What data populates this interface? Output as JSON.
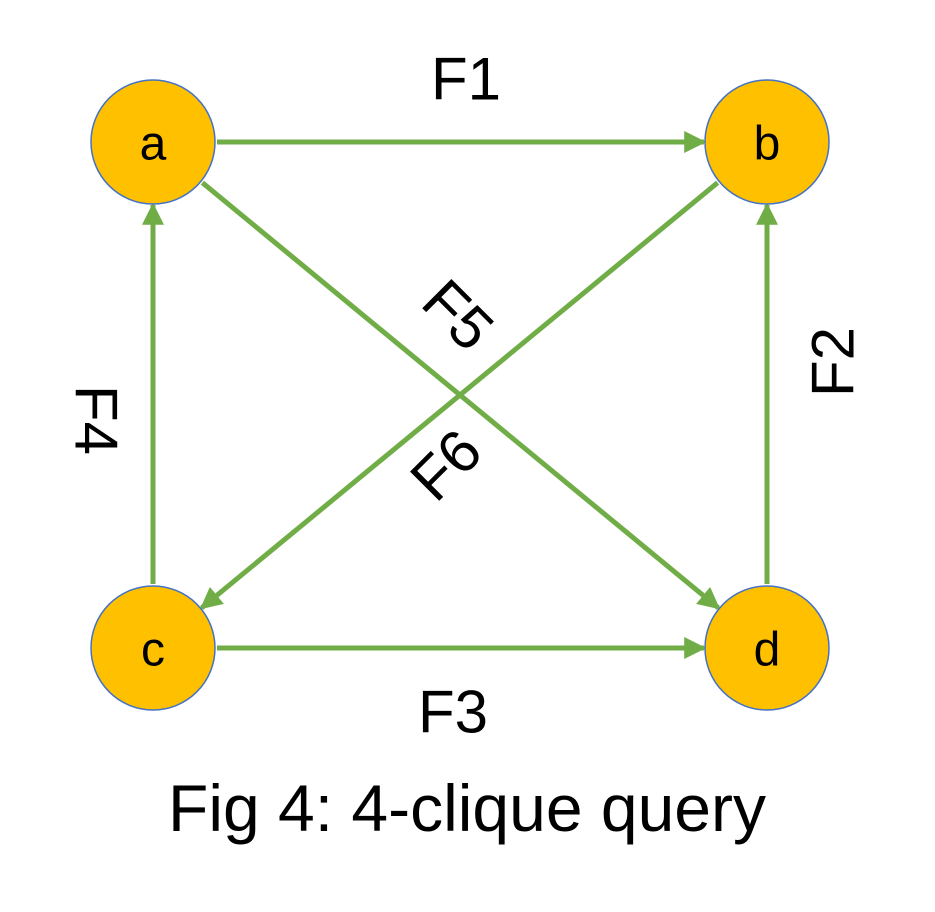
{
  "caption": "Fig 4: 4-clique query",
  "colors": {
    "node_fill": "#ffc000",
    "node_stroke": "#4472c4",
    "edge": "#70ad47"
  },
  "nodes": [
    {
      "id": "a",
      "label": "a"
    },
    {
      "id": "b",
      "label": "b"
    },
    {
      "id": "c",
      "label": "c"
    },
    {
      "id": "d",
      "label": "d"
    }
  ],
  "edges": [
    {
      "id": "F1",
      "label": "F1",
      "from": "a",
      "to": "b"
    },
    {
      "id": "F2",
      "label": "F2",
      "from": "d",
      "to": "b"
    },
    {
      "id": "F3",
      "label": "F3",
      "from": "c",
      "to": "d"
    },
    {
      "id": "F4",
      "label": "F4",
      "from": "c",
      "to": "a"
    },
    {
      "id": "F5",
      "label": "F5",
      "from": "a",
      "to": "d"
    },
    {
      "id": "F6",
      "label": "F6",
      "from": "b",
      "to": "c"
    }
  ]
}
